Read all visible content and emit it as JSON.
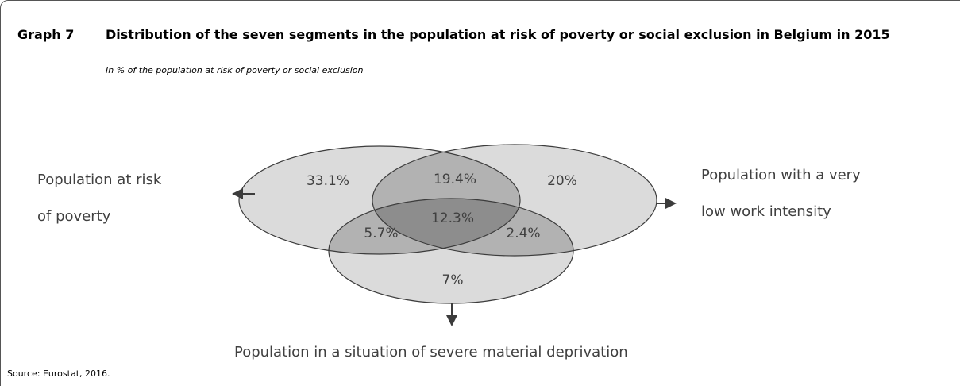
{
  "header": {
    "graph_no": "Graph 7",
    "title": "Distribution of the seven segments in the population at risk of poverty or social exclusion in Belgium in 2015",
    "subtitle": "In % of the population at risk of poverty or social exclusion"
  },
  "source": "Source: Eurostat, 2016.",
  "chart_data": {
    "type": "venn",
    "title": "Distribution of the seven segments in the population at risk of poverty or social exclusion in Belgium in 2015",
    "subtitle": "In % of the population at risk of poverty or social exclusion",
    "sets": [
      {
        "id": "poverty",
        "label_lines": [
          "Population at risk",
          "of poverty"
        ]
      },
      {
        "id": "work",
        "label_lines": [
          "Population with a very",
          "low work intensity"
        ]
      },
      {
        "id": "deprivation",
        "label_lines": [
          "Population in a situation of severe material deprivation"
        ]
      }
    ],
    "segments": [
      {
        "sets": [
          "poverty"
        ],
        "value": 33.1,
        "label": "33.1%"
      },
      {
        "sets": [
          "work"
        ],
        "value": 20,
        "label": "20%"
      },
      {
        "sets": [
          "deprivation"
        ],
        "value": 7,
        "label": "7%"
      },
      {
        "sets": [
          "poverty",
          "work"
        ],
        "value": 19.4,
        "label": "19.4%"
      },
      {
        "sets": [
          "poverty",
          "deprivation"
        ],
        "value": 5.7,
        "label": "5.7%"
      },
      {
        "sets": [
          "work",
          "deprivation"
        ],
        "value": 2.4,
        "label": "2.4%"
      },
      {
        "sets": [
          "poverty",
          "work",
          "deprivation"
        ],
        "value": 12.3,
        "label": "12.3%"
      }
    ],
    "colors": {
      "single": "#dbdbdb",
      "double": "#b2b2b2",
      "triple": "#8d8d8d",
      "stroke": "#3c3c3c",
      "label": "#404040"
    }
  }
}
